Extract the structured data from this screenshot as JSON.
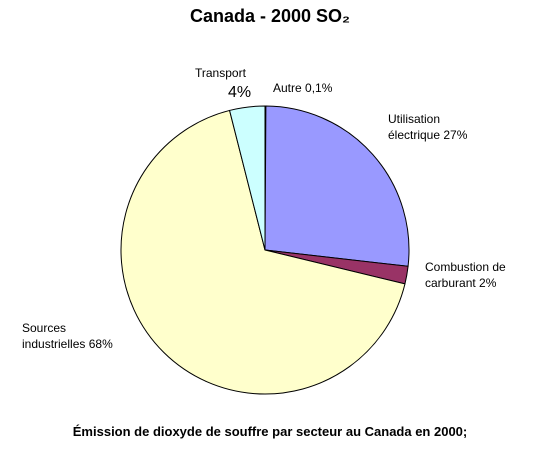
{
  "chart_data": {
    "type": "pie",
    "title": "Canada - 2000 SO₂",
    "categories": [
      "Autre",
      "Utilisation électrique",
      "Combustion de carburant",
      "Sources industrielles",
      "Transport"
    ],
    "values": [
      0.1,
      27,
      2,
      68,
      4
    ],
    "value_labels": [
      "0,1%",
      "27%",
      "2%",
      "68%",
      "4%"
    ],
    "colors": [
      "#993366",
      "#9999ff",
      "#993366",
      "#ffffcc",
      "#ccffff"
    ],
    "caption": "Émission de dioxyde de souffre par secteur au Canada en 2000;"
  }
}
